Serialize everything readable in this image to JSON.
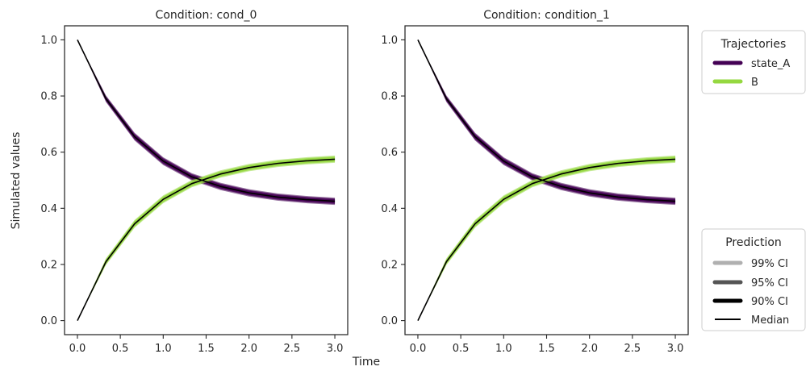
{
  "figure": {
    "shared_xlabel": "Time",
    "shared_ylabel": "Simulated values"
  },
  "legend_trajectories": {
    "title": "Trajectories",
    "entries": [
      {
        "label": "state_A",
        "color": "#440154"
      },
      {
        "label": "B",
        "color": "#95d840"
      }
    ]
  },
  "legend_prediction": {
    "title": "Prediction",
    "entries": [
      {
        "label": "99% CI",
        "color": "#b0b0b0"
      },
      {
        "label": "95% CI",
        "color": "#555555"
      },
      {
        "label": "90% CI",
        "color": "#000000"
      },
      {
        "label": "Median",
        "color": "#000000"
      }
    ]
  },
  "chart_data": [
    {
      "type": "line",
      "title": "Condition: cond_0",
      "xlim": [
        -0.15,
        3.15
      ],
      "ylim": [
        -0.05,
        1.05
      ],
      "xticks": [
        0.0,
        0.5,
        1.0,
        1.5,
        2.0,
        2.5,
        3.0
      ],
      "xtick_labels": [
        "0.0",
        "0.5",
        "1.0",
        "1.5",
        "2.0",
        "2.5",
        "3.0"
      ],
      "yticks": [
        0.0,
        0.2,
        0.4,
        0.6,
        0.8,
        1.0
      ],
      "ytick_labels": [
        "0.0",
        "0.2",
        "0.4",
        "0.6",
        "0.8",
        "1.0"
      ],
      "x": [
        0.0,
        0.333,
        0.667,
        1.0,
        1.333,
        1.667,
        2.0,
        2.333,
        2.667,
        3.0
      ],
      "series": [
        {
          "name": "state_A",
          "color": "#440154",
          "median": [
            1.0,
            0.79,
            0.655,
            0.568,
            0.512,
            0.478,
            0.455,
            0.44,
            0.431,
            0.425
          ],
          "ci_halfwidth": [
            0.0,
            0.012,
            0.014,
            0.014,
            0.013,
            0.013,
            0.013,
            0.013,
            0.013,
            0.013
          ]
        },
        {
          "name": "B",
          "color": "#95d840",
          "median": [
            0.0,
            0.21,
            0.345,
            0.432,
            0.488,
            0.522,
            0.545,
            0.56,
            0.569,
            0.575
          ],
          "ci_halfwidth": [
            0.0,
            0.012,
            0.014,
            0.014,
            0.013,
            0.013,
            0.013,
            0.013,
            0.013,
            0.013
          ]
        }
      ]
    },
    {
      "type": "line",
      "title": "Condition: condition_1",
      "xlim": [
        -0.15,
        3.15
      ],
      "ylim": [
        -0.05,
        1.05
      ],
      "xticks": [
        0.0,
        0.5,
        1.0,
        1.5,
        2.0,
        2.5,
        3.0
      ],
      "xtick_labels": [
        "0.0",
        "0.5",
        "1.0",
        "1.5",
        "2.0",
        "2.5",
        "3.0"
      ],
      "yticks": [
        0.0,
        0.2,
        0.4,
        0.6,
        0.8,
        1.0
      ],
      "ytick_labels": [
        "0.0",
        "0.2",
        "0.4",
        "0.6",
        "0.8",
        "1.0"
      ],
      "x": [
        0.0,
        0.333,
        0.667,
        1.0,
        1.333,
        1.667,
        2.0,
        2.333,
        2.667,
        3.0
      ],
      "series": [
        {
          "name": "state_A",
          "color": "#440154",
          "median": [
            1.0,
            0.79,
            0.655,
            0.568,
            0.512,
            0.478,
            0.455,
            0.44,
            0.431,
            0.425
          ],
          "ci_halfwidth": [
            0.0,
            0.012,
            0.014,
            0.014,
            0.013,
            0.013,
            0.013,
            0.013,
            0.013,
            0.013
          ]
        },
        {
          "name": "B",
          "color": "#95d840",
          "median": [
            0.0,
            0.21,
            0.345,
            0.432,
            0.488,
            0.522,
            0.545,
            0.56,
            0.569,
            0.575
          ],
          "ci_halfwidth": [
            0.0,
            0.012,
            0.014,
            0.014,
            0.013,
            0.013,
            0.013,
            0.013,
            0.013,
            0.013
          ]
        }
      ]
    }
  ]
}
